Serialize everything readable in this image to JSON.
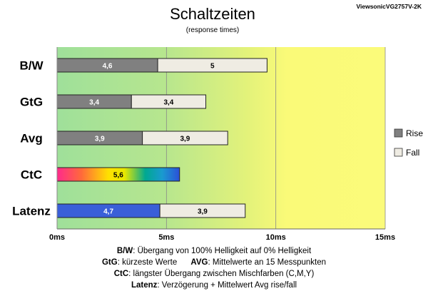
{
  "chart_data": {
    "type": "bar",
    "stacked": true,
    "orientation": "horizontal",
    "title": "Schaltzeiten",
    "subtitle": "(response times)",
    "model": "ViewsonicVG2757V-2K",
    "unit": "ms",
    "xlim": [
      0,
      15
    ],
    "xticks": [
      "0ms",
      "5ms",
      "10ms",
      "15ms"
    ],
    "background_zones": "green (0–5 ms) fading to yellow (10–15 ms)",
    "legend": {
      "position": "right",
      "entries": [
        {
          "label": "Rise",
          "color": "#808080"
        },
        {
          "label": "Fall",
          "color": "#efece3"
        }
      ]
    },
    "categories": [
      "B/W",
      "GtG",
      "Avg",
      "CtC",
      "Latenz"
    ],
    "series": [
      {
        "name": "Rise",
        "values": [
          4.6,
          3.4,
          3.9,
          5.6,
          4.7
        ],
        "labels": [
          "4,6",
          "3,4",
          "3,9",
          "5,6",
          "4,7"
        ]
      },
      {
        "name": "Fall",
        "values": [
          5.0,
          3.4,
          3.9,
          null,
          3.9
        ],
        "labels": [
          "5",
          "3,4",
          "3,9",
          "",
          "3,9"
        ]
      }
    ],
    "special_colors": {
      "CtC": "rainbow gradient",
      "Latenz_rise": "#3a5fd8"
    }
  },
  "footnotes": {
    "line1": {
      "key": "B/W",
      "text": ":  Übergang von 100% Helligkeit auf 0% Helligkeit"
    },
    "line2a": {
      "key": "GtG",
      "text": ": kürzeste  Werte"
    },
    "line2b": {
      "key": "AVG",
      "text": ": Mittelwerte an 15 Messpunkten"
    },
    "line3": {
      "key": "CtC",
      "text": ": längster Übergang  zwischen Mischfarben  (C,M,Y)"
    },
    "line4": {
      "key": "Latenz",
      "text": ": Verzögerung  + Mittelwert Avg rise/fall"
    }
  }
}
